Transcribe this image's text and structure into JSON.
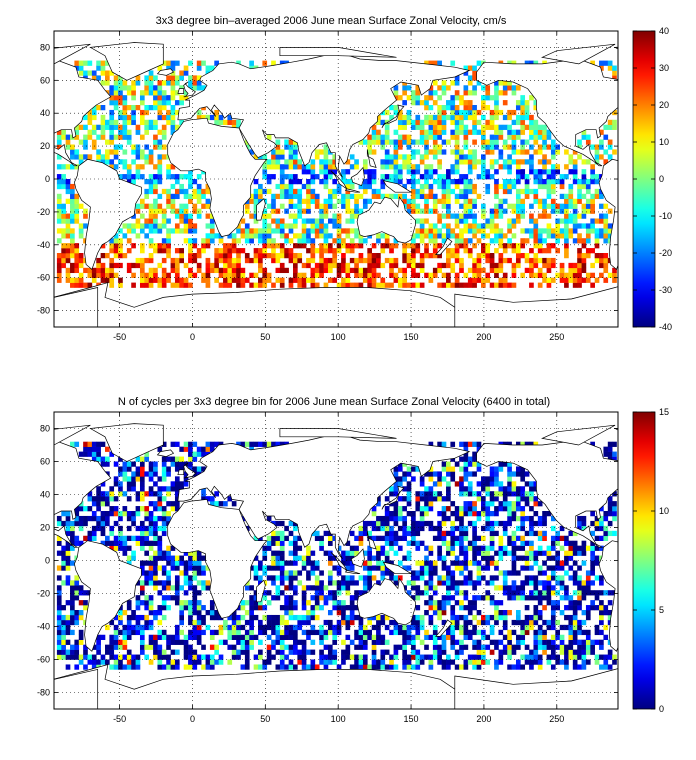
{
  "chart_data": [
    {
      "type": "heatmap",
      "title": "3x3 degree bin–averaged 2006 June mean Surface Zonal Velocity, cm/s",
      "xlabel": "",
      "ylabel": "",
      "xlim": [
        -95,
        292
      ],
      "ylim": [
        -90,
        90
      ],
      "x_ticks": [
        -50,
        0,
        50,
        100,
        150,
        200,
        250
      ],
      "y_ticks": [
        80,
        60,
        40,
        20,
        0,
        -20,
        -40,
        -60,
        -80
      ],
      "grid": true,
      "bin_size_deg": 3,
      "colorbar": {
        "min": -40,
        "max": 40,
        "ticks": [
          40,
          30,
          20,
          10,
          0,
          -10,
          -20,
          -30,
          -40
        ],
        "colormap": "jet"
      },
      "colormap_stops": [
        "#00008f",
        "#0000ff",
        "#00ffff",
        "#ffff00",
        "#ff0000",
        "#800000"
      ]
    },
    {
      "type": "heatmap",
      "title": "N of cycles per 3x3 degree bin for 2006 June mean Surface Zonal Velocity (6400 in total)",
      "xlabel": "",
      "ylabel": "",
      "xlim": [
        -95,
        292
      ],
      "ylim": [
        -90,
        90
      ],
      "x_ticks": [
        -50,
        0,
        50,
        100,
        150,
        200,
        250
      ],
      "y_ticks": [
        80,
        60,
        40,
        20,
        0,
        -20,
        -40,
        -60,
        -80
      ],
      "grid": true,
      "bin_size_deg": 3,
      "colorbar": {
        "min": 0,
        "max": 15,
        "ticks": [
          15,
          10,
          5,
          0
        ],
        "colormap": "jet"
      },
      "colormap_stops": [
        "#00008f",
        "#0000ff",
        "#00ffff",
        "#ffff00",
        "#ff0000",
        "#800000"
      ]
    }
  ]
}
